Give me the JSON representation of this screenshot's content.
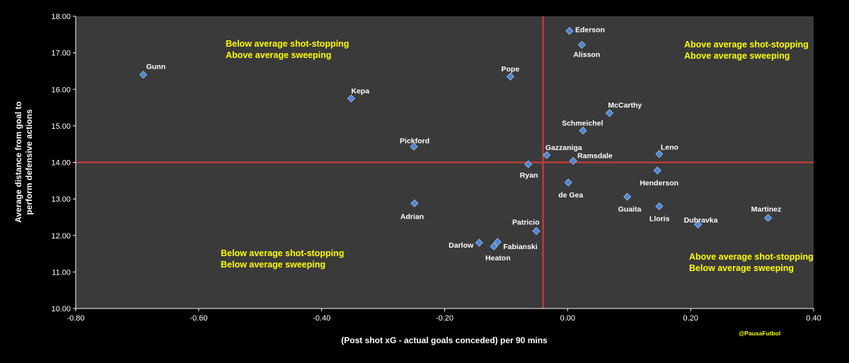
{
  "chart_data": {
    "type": "scatter",
    "xlabel": "(Post shot xG - actual goals conceded) per 90 mins",
    "ylabel_lines": [
      "Average distance from goal to",
      "perform defensive actions"
    ],
    "xlim": [
      -0.8,
      0.4
    ],
    "ylim": [
      10.0,
      18.0
    ],
    "x_ticks": [
      -0.8,
      -0.6,
      -0.4,
      -0.2,
      0.0,
      0.2,
      0.4
    ],
    "x_tick_labels": [
      "-0.80",
      "-0.60",
      "-0.40",
      "-0.20",
      "0.00",
      "0.20",
      "0.40"
    ],
    "y_ticks": [
      10,
      11,
      12,
      13,
      14,
      15,
      16,
      17,
      18
    ],
    "y_tick_labels": [
      "10.00",
      "11.00",
      "12.00",
      "13.00",
      "14.00",
      "15.00",
      "16.00",
      "17.00",
      "18.00"
    ],
    "grid": false,
    "background_color": "#3a3a3a",
    "marker_color": "#4a86d4",
    "reference_line_color": "#d83a3a",
    "reference_lines": {
      "x": -0.04,
      "y": 14.0
    },
    "points": [
      {
        "name": "Ederson",
        "x": 0.003,
        "y": 17.6
      },
      {
        "name": "Alisson",
        "x": 0.023,
        "y": 17.22
      },
      {
        "name": "Gunn",
        "x": -0.69,
        "y": 16.4
      },
      {
        "name": "Pope",
        "x": -0.093,
        "y": 16.35
      },
      {
        "name": "Kepa",
        "x": -0.352,
        "y": 15.75
      },
      {
        "name": "McCarthy",
        "x": 0.068,
        "y": 15.35
      },
      {
        "name": "Schmeichel",
        "x": 0.025,
        "y": 14.87
      },
      {
        "name": "Pickford",
        "x": -0.25,
        "y": 14.43
      },
      {
        "name": "Leno",
        "x": 0.149,
        "y": 14.23
      },
      {
        "name": "Gazzaniga",
        "x": -0.034,
        "y": 14.2
      },
      {
        "name": "Ramsdale",
        "x": 0.009,
        "y": 14.04
      },
      {
        "name": "Ryan",
        "x": -0.064,
        "y": 13.95
      },
      {
        "name": "Henderson",
        "x": 0.146,
        "y": 13.78
      },
      {
        "name": "de Gea",
        "x": 0.001,
        "y": 13.45
      },
      {
        "name": "Guaita",
        "x": 0.097,
        "y": 13.06
      },
      {
        "name": "Adrian",
        "x": -0.249,
        "y": 12.88
      },
      {
        "name": "Lloris",
        "x": 0.149,
        "y": 12.8
      },
      {
        "name": "Martinez",
        "x": 0.326,
        "y": 12.48
      },
      {
        "name": "Dubravka",
        "x": 0.212,
        "y": 12.3
      },
      {
        "name": "Patricio",
        "x": -0.051,
        "y": 12.12
      },
      {
        "name": "Fabianski",
        "x": -0.114,
        "y": 11.82
      },
      {
        "name": "Darlow",
        "x": -0.144,
        "y": 11.8
      },
      {
        "name": "Heaton",
        "x": -0.12,
        "y": 11.7
      }
    ],
    "quadrant_labels": [
      {
        "position": "top-left",
        "lines": [
          "Below average shot-stopping",
          "Above average sweeping"
        ]
      },
      {
        "position": "top-right",
        "lines": [
          "Above average shot-stopping",
          "Above average sweeping"
        ]
      },
      {
        "position": "bottom-left",
        "lines": [
          "Below average shot-stopping",
          "Below average sweeping"
        ]
      },
      {
        "position": "bottom-right",
        "lines": [
          "Above average shot-stopping",
          "Below average sweeping"
        ]
      }
    ],
    "annotation_color": "#ffff00",
    "credit": "@PausaFutbol"
  }
}
